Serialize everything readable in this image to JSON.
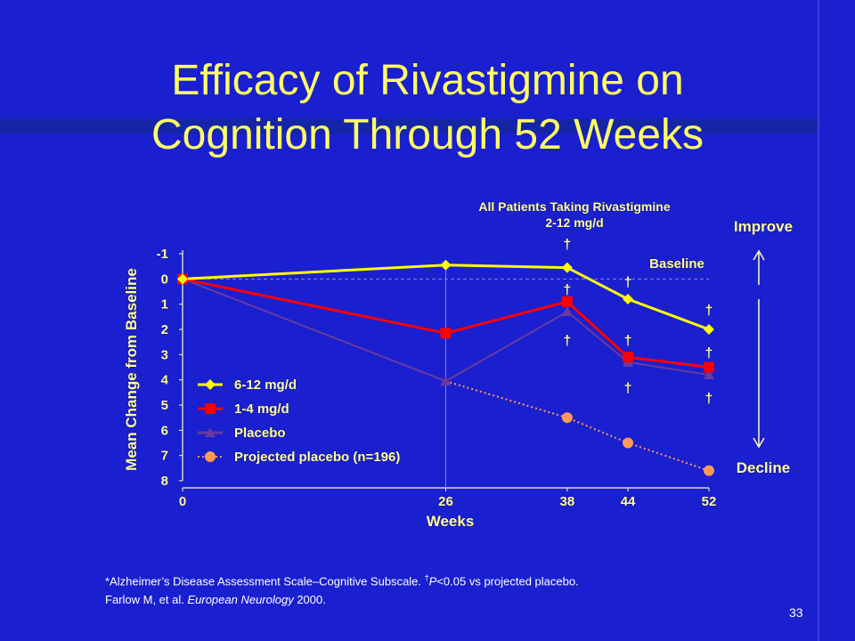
{
  "slide": {
    "title_line1": "Efficacy of Rivastigmine on",
    "title_line2": "Cognition Through 52 Weeks",
    "footnote_part1": "*Alzheimer’s Disease Assessment Scale–Cognitive Subscale. ",
    "footnote_dagger": "†",
    "footnote_p": "P",
    "footnote_part2": "<0.05 vs projected placebo.",
    "footnote_line2_pre": "Farlow M, et al. ",
    "footnote_journal": "European Neurology",
    "footnote_year": " 2000.",
    "page_number": "33"
  },
  "chart_data": {
    "type": "line",
    "header_line1": "All Patients Taking Rivastigmine",
    "header_line2": "2-12 mg/d",
    "xlabel": "Weeks",
    "ylabel": "Mean Change from Baseline",
    "x_ticks": [
      0,
      26,
      38,
      44,
      52
    ],
    "y_ticks": [
      -1,
      0,
      1,
      2,
      3,
      4,
      5,
      6,
      7,
      8
    ],
    "ylim": [
      -1,
      8
    ],
    "xlim": [
      0,
      52
    ],
    "y_inverted": true,
    "baseline_label": "Baseline",
    "improve_label": "Improve",
    "decline_label": "Decline",
    "significance_marker": "†",
    "series": [
      {
        "name": "6-12 mg/d",
        "color": "#ffff00",
        "marker": "diamond",
        "points": [
          [
            0,
            0
          ],
          [
            26,
            -0.55
          ],
          [
            38,
            -0.45
          ],
          [
            44,
            0.8
          ],
          [
            52,
            2.0
          ]
        ]
      },
      {
        "name": "1-4 mg/d",
        "color": "#ff0000",
        "marker": "square",
        "points": [
          [
            0,
            0
          ],
          [
            26,
            2.15
          ],
          [
            38,
            0.9
          ],
          [
            44,
            3.1
          ],
          [
            52,
            3.5
          ]
        ]
      },
      {
        "name": "Placebo",
        "color": "#6a3aa0",
        "marker": "triangle",
        "points": [
          [
            0,
            0
          ],
          [
            26,
            4.05
          ],
          [
            38,
            1.3
          ],
          [
            44,
            3.3
          ],
          [
            52,
            3.8
          ]
        ]
      },
      {
        "name": "Projected placebo (n=196)",
        "color": "#ff9955",
        "marker": "circle",
        "dotted": true,
        "points": [
          [
            0,
            0
          ],
          [
            26,
            4.05
          ],
          [
            38,
            5.5
          ],
          [
            44,
            6.5
          ],
          [
            52,
            7.6
          ]
        ]
      }
    ],
    "daggers": [
      [
        38,
        -1.4
      ],
      [
        38,
        0.4
      ],
      [
        38,
        2.4
      ],
      [
        44,
        0.1
      ],
      [
        44,
        2.4
      ],
      [
        44,
        4.3
      ],
      [
        52,
        1.2
      ],
      [
        52,
        2.9
      ],
      [
        52,
        4.7
      ]
    ]
  }
}
